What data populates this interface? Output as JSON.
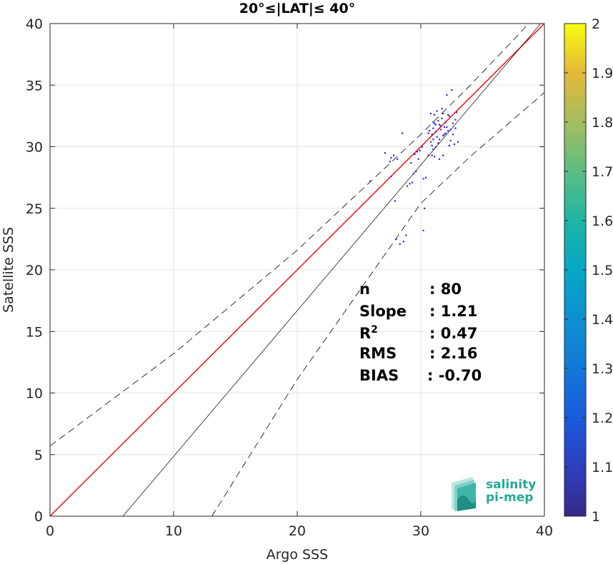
{
  "chart_data": {
    "type": "scatter",
    "title": "20°≤|LAT|≤ 40°",
    "xlabel": "Argo SSS",
    "ylabel": "Satellite SSS",
    "xlim": [
      0,
      40
    ],
    "ylim": [
      0,
      40
    ],
    "xticks": [
      0,
      10,
      20,
      30,
      40
    ],
    "yticks": [
      0,
      5,
      10,
      15,
      20,
      25,
      30,
      35,
      40
    ],
    "grid": true,
    "colorbar": {
      "range": [
        1,
        2
      ],
      "ticks": [
        "1",
        "1.1",
        "1.2",
        "1.3",
        "1.4",
        "1.5",
        "1.6",
        "1.7",
        "1.8",
        "1.9",
        "2"
      ],
      "colormap": "parula"
    },
    "identity_line": {
      "color": "#ff0000",
      "x": [
        0,
        40
      ],
      "y": [
        0,
        40
      ]
    },
    "fit_line": {
      "color": "#000000",
      "x": [
        5.9,
        39.7
      ],
      "y": [
        0,
        40
      ]
    },
    "envelope_upper": {
      "color": "#000000",
      "points": [
        [
          0,
          5.7
        ],
        [
          10,
          13.2
        ],
        [
          20,
          21.6
        ],
        [
          30,
          31.0
        ],
        [
          34,
          35.0
        ],
        [
          38,
          39.2
        ],
        [
          40,
          41.5
        ]
      ]
    },
    "envelope_lower": {
      "color": "#000000",
      "points": [
        [
          13.1,
          0
        ],
        [
          20,
          11.1
        ],
        [
          30,
          25.4
        ],
        [
          34,
          29.2
        ],
        [
          40,
          34.4
        ]
      ]
    },
    "points": [
      [
        25.9,
        27.2,
        1.1
      ],
      [
        27.1,
        29.5,
        1.1
      ],
      [
        27.6,
        29.1,
        1.1
      ],
      [
        27.8,
        29.3,
        1.1
      ],
      [
        28.1,
        29.0,
        1.1
      ],
      [
        27.9,
        25.6,
        1.1
      ],
      [
        27.6,
        27.6,
        1.1
      ],
      [
        28.5,
        31.1,
        1.1
      ],
      [
        29.1,
        27.0,
        1.1
      ],
      [
        29.3,
        27.1,
        1.1
      ],
      [
        29.4,
        27.8,
        1.1
      ],
      [
        29.6,
        28.0,
        1.1
      ],
      [
        29.7,
        29.6,
        1.1
      ],
      [
        29.8,
        29.0,
        1.1
      ],
      [
        29.9,
        29.7,
        1.1
      ],
      [
        30.1,
        30.0,
        1.1
      ],
      [
        30.2,
        27.4,
        1.1
      ],
      [
        30.4,
        27.5,
        1.1
      ],
      [
        30.3,
        25.0,
        1.1
      ],
      [
        30.2,
        23.2,
        1.1
      ],
      [
        28.0,
        22.5,
        1.1
      ],
      [
        28.3,
        22.1,
        1.1
      ],
      [
        28.6,
        22.3,
        1.1
      ],
      [
        28.8,
        22.8,
        1.1
      ],
      [
        30.6,
        29.3,
        1.1
      ],
      [
        30.8,
        30.4,
        1.1
      ],
      [
        30.9,
        31.0,
        1.1
      ],
      [
        31.0,
        31.5,
        1.1
      ],
      [
        31.0,
        32.0,
        1.1
      ],
      [
        31.1,
        32.6,
        1.1
      ],
      [
        31.2,
        31.2,
        1.1
      ],
      [
        31.3,
        30.8,
        1.1
      ],
      [
        31.4,
        32.1,
        1.1
      ],
      [
        31.5,
        31.8,
        1.1
      ],
      [
        31.6,
        31.4,
        1.1
      ],
      [
        31.7,
        32.3,
        1.1
      ],
      [
        31.8,
        30.9,
        1.1
      ],
      [
        31.9,
        31.6,
        1.1
      ],
      [
        32.0,
        32.0,
        1.1
      ],
      [
        32.1,
        34.2,
        1.1
      ],
      [
        32.2,
        31.3,
        1.1
      ],
      [
        32.3,
        32.5,
        1.1
      ],
      [
        32.4,
        30.5,
        1.1
      ],
      [
        32.5,
        34.6,
        1.1
      ],
      [
        32.6,
        31.9,
        1.1
      ],
      [
        32.7,
        30.2,
        1.1
      ],
      [
        32.8,
        31.5,
        1.1
      ],
      [
        32.9,
        32.8,
        1.1
      ],
      [
        33.0,
        30.4,
        1.1
      ],
      [
        30.9,
        29.3,
        1.1
      ],
      [
        31.1,
        29.2,
        1.1
      ],
      [
        31.5,
        29.0,
        1.1
      ],
      [
        31.8,
        29.3,
        1.1
      ],
      [
        31.2,
        30.0,
        1.1
      ],
      [
        31.0,
        30.6,
        1.1
      ],
      [
        31.6,
        31.7,
        1.1
      ],
      [
        31.9,
        31.0,
        1.1
      ],
      [
        32.1,
        31.6,
        1.1
      ],
      [
        31.3,
        32.9,
        1.1
      ],
      [
        31.7,
        33.1,
        1.1
      ],
      [
        32.3,
        30.1,
        1.1
      ],
      [
        32.6,
        31.0,
        1.1
      ],
      [
        30.7,
        31.3,
        1.1
      ],
      [
        30.9,
        30.1,
        1.1
      ],
      [
        31.4,
        30.3,
        1.1
      ],
      [
        32.2,
        32.6,
        1.1
      ],
      [
        32.8,
        32.2,
        1.1
      ],
      [
        31.1,
        31.9,
        1.1
      ],
      [
        31.5,
        30.6,
        1.1
      ],
      [
        30.8,
        32.7,
        1.1
      ],
      [
        29.2,
        28.7,
        1.1
      ],
      [
        28.9,
        26.8,
        1.1
      ],
      [
        27.5,
        28.8,
        1.1
      ],
      [
        31.8,
        32.7,
        1.1
      ],
      [
        32.0,
        31.1,
        1.1
      ],
      [
        30.6,
        31.1,
        1.1
      ],
      [
        31.2,
        31.8,
        1.1
      ],
      [
        29.5,
        29.4,
        1.1
      ],
      [
        32.4,
        31.4,
        1.1
      ],
      [
        31.0,
        29.8,
        1.1
      ]
    ],
    "stats": [
      {
        "label": "n",
        "value": ": 80"
      },
      {
        "label": "Slope",
        "value": ": 1.21"
      },
      {
        "label": "R",
        "sup": "2",
        "value": ": 0.47"
      },
      {
        "label": "RMS",
        "value": ": 2.16"
      },
      {
        "label": "BIAS",
        "value": ": -0.70"
      }
    ]
  },
  "logo": {
    "line1": "salinity",
    "line2": "pi-mep",
    "color": "#26a89a"
  },
  "colors": {
    "point": "#2b2bd6",
    "identity": "#ff0000",
    "fit": "#000000",
    "grid": "#e3e3e3",
    "axis": "#262626"
  }
}
